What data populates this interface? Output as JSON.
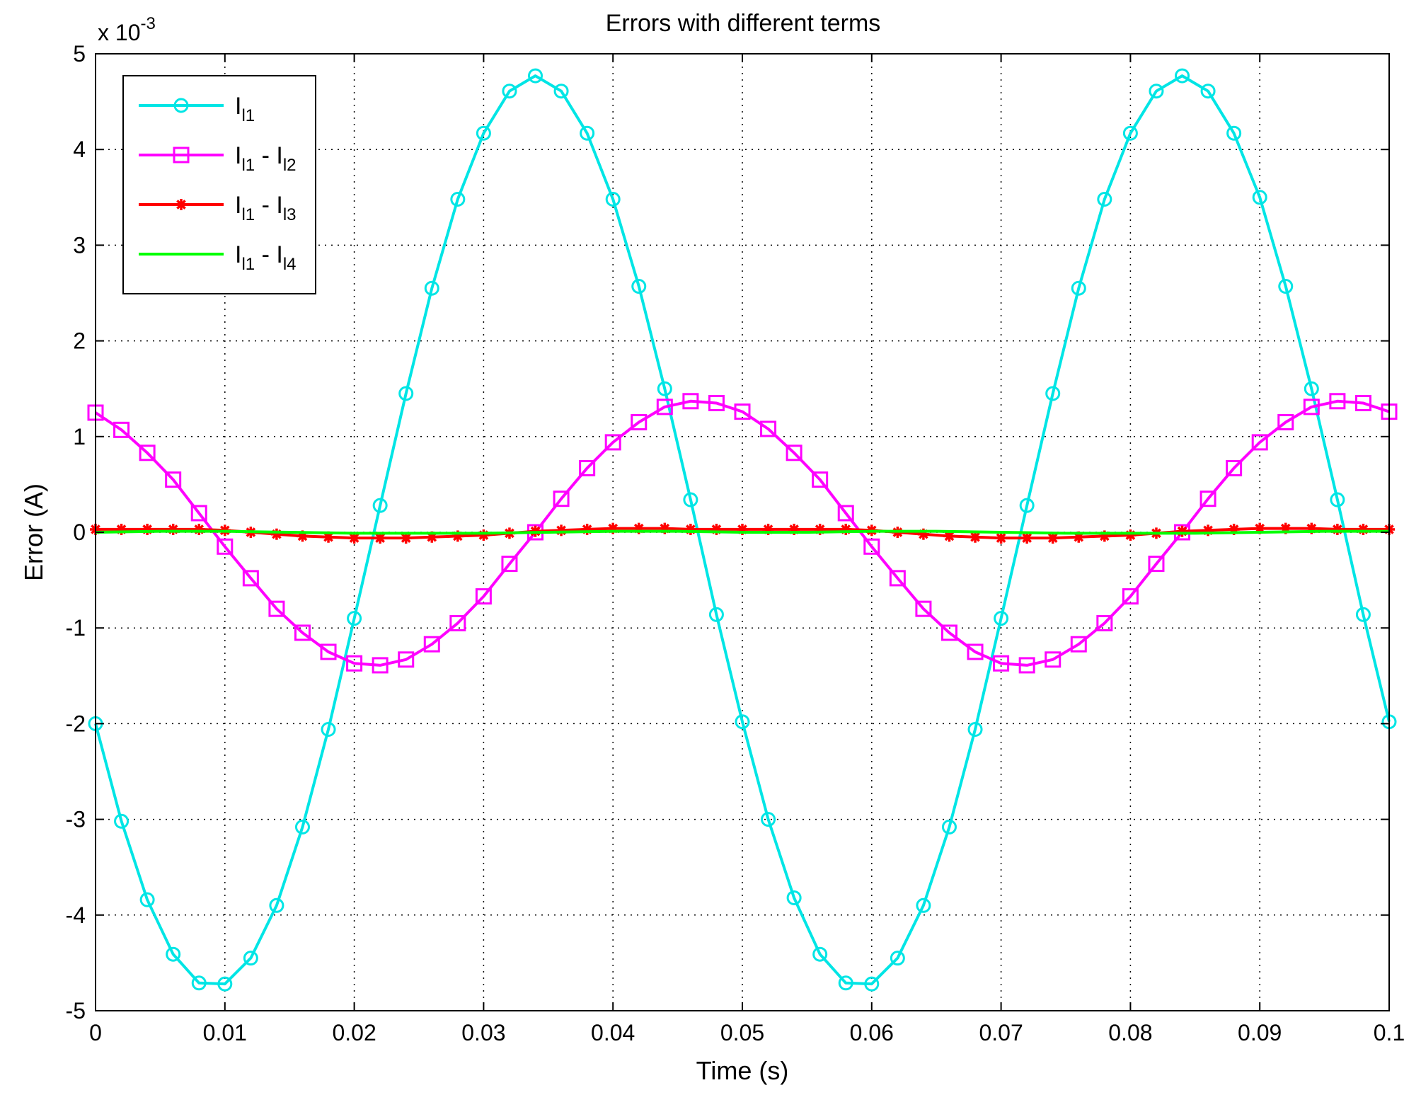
{
  "chart_data": {
    "type": "line",
    "title": "Errors with different terms",
    "xlabel": "Time (s)",
    "ylabel": "Error (A)",
    "y_multiplier_base": "x 10",
    "y_multiplier_exp": "-3",
    "xlim": [
      0,
      0.1
    ],
    "ylim": [
      -5,
      5
    ],
    "x_ticks": [
      0,
      0.01,
      0.02,
      0.03,
      0.04,
      0.05,
      0.06,
      0.07,
      0.08,
      0.09,
      0.1
    ],
    "x_tick_labels": [
      "0",
      "0.01",
      "0.02",
      "0.03",
      "0.04",
      "0.05",
      "0.06",
      "0.07",
      "0.08",
      "0.09",
      "0.1"
    ],
    "y_ticks": [
      -5,
      -4,
      -3,
      -2,
      -1,
      0,
      1,
      2,
      3,
      4,
      5
    ],
    "y_tick_labels": [
      "-5",
      "-4",
      "-3",
      "-2",
      "-1",
      "0",
      "1",
      "2",
      "3",
      "4",
      "5"
    ],
    "grid": true,
    "legend_position": "top-left",
    "series": [
      {
        "name": "I_l1",
        "legend_main": "I",
        "legend_sub": "l1",
        "color": "#00e5e5",
        "marker": "circle",
        "x": [
          0,
          0.002,
          0.004,
          0.006,
          0.008,
          0.01,
          0.012,
          0.014,
          0.016,
          0.018,
          0.02,
          0.022,
          0.024,
          0.026,
          0.028,
          0.03,
          0.032,
          0.034,
          0.036,
          0.038,
          0.04,
          0.042,
          0.044,
          0.046,
          0.048,
          0.05,
          0.052,
          0.054,
          0.056,
          0.058,
          0.06,
          0.062,
          0.064,
          0.066,
          0.068,
          0.07,
          0.072,
          0.074,
          0.076,
          0.078,
          0.08,
          0.082,
          0.084,
          0.086,
          0.088,
          0.09,
          0.092,
          0.094,
          0.096,
          0.098,
          0.1
        ],
        "values": [
          -2.0,
          -3.02,
          -3.84,
          -4.41,
          -4.71,
          -4.72,
          -4.45,
          -3.9,
          -3.08,
          -2.06,
          -0.9,
          0.28,
          1.45,
          2.55,
          3.48,
          4.17,
          4.61,
          4.77,
          4.61,
          4.17,
          3.48,
          2.57,
          1.5,
          0.34,
          -0.86,
          -1.98,
          -3.0,
          -3.82,
          -4.41,
          -4.71,
          -4.72,
          -4.45,
          -3.9,
          -3.08,
          -2.06,
          -0.9,
          0.28,
          1.45,
          2.55,
          3.48,
          4.17,
          4.61,
          4.77,
          4.61,
          4.17,
          3.5,
          2.57,
          1.5,
          0.34,
          -0.86,
          -1.98
        ]
      },
      {
        "name": "I_l1 - I_l2",
        "legend_main": "I",
        "legend_sub": "l1",
        "legend_mid": " - I",
        "legend_sub2": "l2",
        "color": "#ff00ff",
        "marker": "square",
        "x": [
          0,
          0.002,
          0.004,
          0.006,
          0.008,
          0.01,
          0.012,
          0.014,
          0.016,
          0.018,
          0.02,
          0.022,
          0.024,
          0.026,
          0.028,
          0.03,
          0.032,
          0.034,
          0.036,
          0.038,
          0.04,
          0.042,
          0.044,
          0.046,
          0.048,
          0.05,
          0.052,
          0.054,
          0.056,
          0.058,
          0.06,
          0.062,
          0.064,
          0.066,
          0.068,
          0.07,
          0.072,
          0.074,
          0.076,
          0.078,
          0.08,
          0.082,
          0.084,
          0.086,
          0.088,
          0.09,
          0.092,
          0.094,
          0.096,
          0.098,
          0.1
        ],
        "values": [
          1.25,
          1.07,
          0.83,
          0.55,
          0.2,
          -0.15,
          -0.48,
          -0.8,
          -1.05,
          -1.25,
          -1.37,
          -1.39,
          -1.33,
          -1.17,
          -0.95,
          -0.67,
          -0.33,
          0.0,
          0.35,
          0.67,
          0.94,
          1.15,
          1.31,
          1.37,
          1.35,
          1.26,
          1.08,
          0.83,
          0.55,
          0.2,
          -0.15,
          -0.48,
          -0.8,
          -1.05,
          -1.25,
          -1.37,
          -1.39,
          -1.33,
          -1.17,
          -0.95,
          -0.67,
          -0.33,
          0.0,
          0.35,
          0.67,
          0.94,
          1.15,
          1.31,
          1.37,
          1.35,
          1.26
        ]
      },
      {
        "name": "I_l1 - I_l3",
        "legend_main": "I",
        "legend_sub": "l1",
        "legend_mid": " - I",
        "legend_sub2": "l3",
        "color": "#ff0000",
        "marker": "star",
        "x": [
          0,
          0.002,
          0.004,
          0.006,
          0.008,
          0.01,
          0.012,
          0.014,
          0.016,
          0.018,
          0.02,
          0.022,
          0.024,
          0.026,
          0.028,
          0.03,
          0.032,
          0.034,
          0.036,
          0.038,
          0.04,
          0.042,
          0.044,
          0.046,
          0.048,
          0.05,
          0.052,
          0.054,
          0.056,
          0.058,
          0.06,
          0.062,
          0.064,
          0.066,
          0.068,
          0.07,
          0.072,
          0.074,
          0.076,
          0.078,
          0.08,
          0.082,
          0.084,
          0.086,
          0.088,
          0.09,
          0.092,
          0.094,
          0.096,
          0.098,
          0.1
        ],
        "values": [
          0.03,
          0.03,
          0.03,
          0.03,
          0.03,
          0.02,
          0.0,
          -0.02,
          -0.04,
          -0.05,
          -0.06,
          -0.06,
          -0.06,
          -0.05,
          -0.04,
          -0.03,
          -0.01,
          0.01,
          0.02,
          0.03,
          0.04,
          0.04,
          0.04,
          0.03,
          0.03,
          0.03,
          0.03,
          0.03,
          0.03,
          0.03,
          0.02,
          0.0,
          -0.02,
          -0.04,
          -0.05,
          -0.06,
          -0.06,
          -0.06,
          -0.05,
          -0.04,
          -0.03,
          -0.01,
          0.01,
          0.02,
          0.03,
          0.04,
          0.04,
          0.04,
          0.03,
          0.03,
          0.03
        ]
      },
      {
        "name": "I_l1 - I_l4",
        "legend_main": "I",
        "legend_sub": "l1",
        "legend_mid": " - I",
        "legend_sub2": "l4",
        "color": "#00ff00",
        "marker": "none",
        "x": [
          0,
          0.005,
          0.01,
          0.015,
          0.02,
          0.025,
          0.03,
          0.035,
          0.04,
          0.045,
          0.05,
          0.055,
          0.06,
          0.065,
          0.07,
          0.075,
          0.08,
          0.085,
          0.09,
          0.095,
          0.1
        ],
        "values": [
          0.0,
          0.01,
          0.01,
          0.0,
          -0.01,
          -0.01,
          -0.01,
          0.0,
          0.01,
          0.01,
          0.0,
          0.0,
          0.01,
          0.01,
          0.0,
          -0.01,
          -0.01,
          -0.01,
          0.0,
          0.01,
          0.01
        ]
      }
    ]
  }
}
